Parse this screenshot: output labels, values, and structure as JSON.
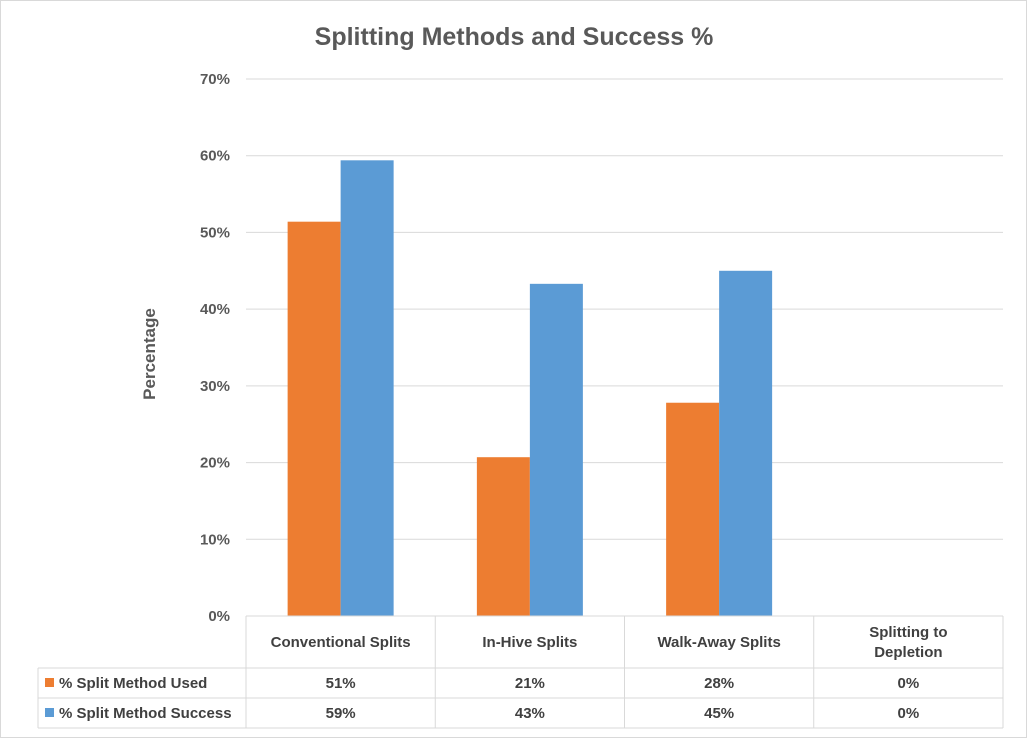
{
  "chart_data": {
    "type": "bar",
    "title": "Splitting Methods and Success %",
    "ylabel": "Percentage",
    "xlabel": "",
    "ylim": [
      0,
      0.7
    ],
    "yticks": [
      "0%",
      "10%",
      "20%",
      "30%",
      "40%",
      "50%",
      "60%",
      "70%"
    ],
    "grid": true,
    "legend": "data-table",
    "categories": [
      [
        "Conventional Splits"
      ],
      [
        "In-Hive Splits"
      ],
      [
        "Walk-Away Splits"
      ],
      [
        "Splitting to",
        "Depletion"
      ]
    ],
    "series": [
      {
        "name": "% Split Method Used",
        "color": "#ed7d31",
        "values": [
          0.514,
          0.207,
          0.278,
          0.0
        ],
        "labels": [
          "51%",
          "21%",
          "28%",
          "0%"
        ]
      },
      {
        "name": "% Split Method Success",
        "color": "#5b9bd5",
        "values": [
          0.594,
          0.433,
          0.45,
          0.0
        ],
        "labels": [
          "59%",
          "43%",
          "45%",
          "0%"
        ]
      }
    ]
  }
}
